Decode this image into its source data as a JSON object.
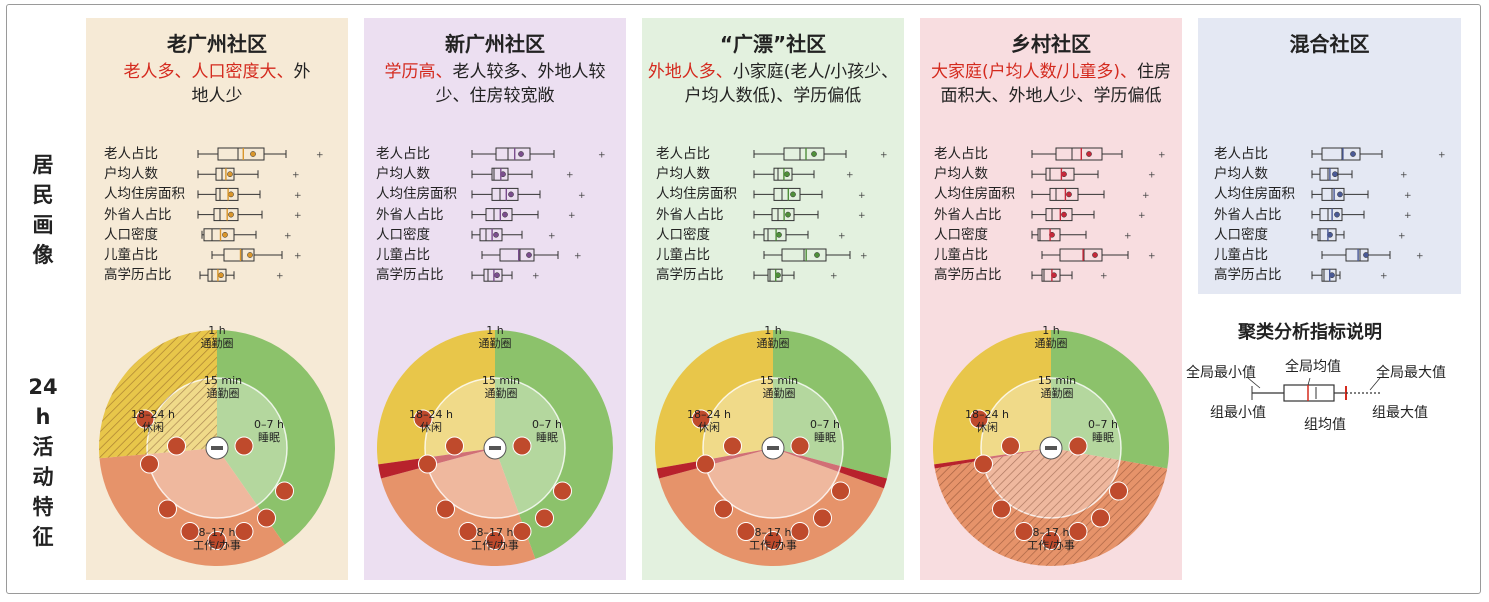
{
  "side_labels": {
    "profile": [
      "居",
      "民",
      "画",
      "像"
    ],
    "activity": [
      "24 h",
      "活",
      "动",
      "特",
      "征"
    ]
  },
  "indicators": [
    "老人占比",
    "户均人数",
    "人均住房面积",
    "外省人占比",
    "人口密度",
    "儿童占比",
    "高学历占比"
  ],
  "panels": [
    {
      "title": "老广州社区",
      "desc_highlight": "老人多、人口密度大、",
      "desc_rest": "外地人少",
      "bg": "#f6ead6",
      "accent": "#d9962c"
    },
    {
      "title": "新广州社区",
      "desc_highlight": "学历高、",
      "desc_rest": "老人较多、外地人较少、住房较宽敞",
      "bg": "#ecdff1",
      "accent": "#7b4e8e"
    },
    {
      "title": "“广漂”社区",
      "desc_highlight": "外地人多、",
      "desc_rest": "小家庭(老人/小孩少、户均人数低)、学历偏低",
      "bg": "#e3f1df",
      "accent": "#4f8f3a"
    },
    {
      "title": "乡村社区",
      "desc_highlight": "大家庭(户均人数/儿童多)、",
      "desc_rest": "住房面积大、外地人少、学历偏低",
      "bg": "#f8dde0",
      "accent": "#c5283a"
    },
    {
      "title": "混合社区",
      "desc_highlight": "",
      "desc_rest": "",
      "bg": "#e4e8f3",
      "accent": "#4a5a96"
    }
  ],
  "donut_labels": {
    "commute_1h": [
      "1 h",
      "通勤圈"
    ],
    "commute_15": [
      "15 min",
      "通勤圈"
    ],
    "sleep": [
      "0–7 h",
      "睡眠"
    ],
    "leisure": [
      "18–24 h",
      "休闲"
    ],
    "work": [
      "8–17 h",
      "工作/办事"
    ]
  },
  "legend": {
    "title": "聚类分析指标说明",
    "global_min": "全局最小值",
    "global_mean": "全局均值",
    "global_max": "全局最大值",
    "group_min": "组最小值",
    "group_mean": "组均值",
    "group_max": "组最大值"
  },
  "colors": {
    "sleep": "#8cc26b",
    "work": "#e6936a",
    "leisure": "#e8c64a",
    "commute": "#b8222c",
    "icon": "#bf4a2c"
  }
}
